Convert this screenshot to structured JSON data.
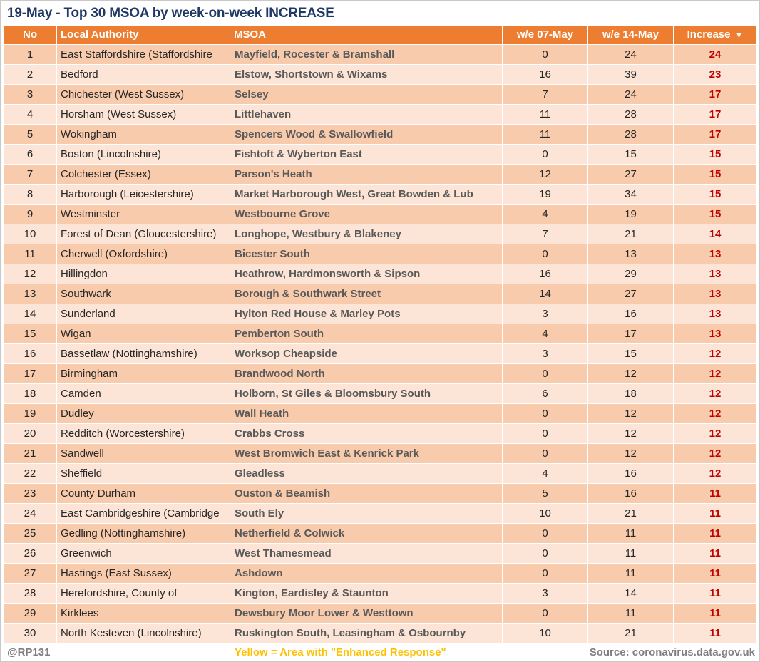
{
  "chart_data": {
    "type": "table",
    "title": "19-May - Top 30 MSOA by week-on-week INCREASE",
    "columns": [
      "No",
      "Local Authority",
      "MSOA",
      "w/e 07-May",
      "w/e 14-May",
      "Increase"
    ],
    "sort": {
      "column": "Increase",
      "direction": "desc",
      "icon": "▼"
    },
    "rows": [
      [
        1,
        "East Staffordshire (Staffordshire",
        "Mayfield, Rocester & Bramshall",
        0,
        24,
        24
      ],
      [
        2,
        "Bedford",
        "Elstow, Shortstown & Wixams",
        16,
        39,
        23
      ],
      [
        3,
        "Chichester (West Sussex)",
        "Selsey",
        7,
        24,
        17
      ],
      [
        4,
        "Horsham (West Sussex)",
        "Littlehaven",
        11,
        28,
        17
      ],
      [
        5,
        "Wokingham",
        "Spencers Wood & Swallowfield",
        11,
        28,
        17
      ],
      [
        6,
        "Boston (Lincolnshire)",
        "Fishtoft & Wyberton East",
        0,
        15,
        15
      ],
      [
        7,
        "Colchester (Essex)",
        "Parson's Heath",
        12,
        27,
        15
      ],
      [
        8,
        "Harborough (Leicestershire)",
        "Market Harborough West, Great Bowden & Lub",
        19,
        34,
        15
      ],
      [
        9,
        "Westminster",
        "Westbourne Grove",
        4,
        19,
        15
      ],
      [
        10,
        "Forest of Dean (Gloucestershire)",
        "Longhope, Westbury & Blakeney",
        7,
        21,
        14
      ],
      [
        11,
        "Cherwell (Oxfordshire)",
        "Bicester South",
        0,
        13,
        13
      ],
      [
        12,
        "Hillingdon",
        "Heathrow, Hardmonsworth & Sipson",
        16,
        29,
        13
      ],
      [
        13,
        "Southwark",
        "Borough & Southwark Street",
        14,
        27,
        13
      ],
      [
        14,
        "Sunderland",
        "Hylton Red House & Marley Pots",
        3,
        16,
        13
      ],
      [
        15,
        "Wigan",
        "Pemberton South",
        4,
        17,
        13
      ],
      [
        16,
        "Bassetlaw (Nottinghamshire)",
        "Worksop Cheapside",
        3,
        15,
        12
      ],
      [
        17,
        "Birmingham",
        "Brandwood North",
        0,
        12,
        12
      ],
      [
        18,
        "Camden",
        "Holborn, St Giles & Bloomsbury South",
        6,
        18,
        12
      ],
      [
        19,
        "Dudley",
        "Wall Heath",
        0,
        12,
        12
      ],
      [
        20,
        "Redditch (Worcestershire)",
        "Crabbs Cross",
        0,
        12,
        12
      ],
      [
        21,
        "Sandwell",
        "West Bromwich East & Kenrick Park",
        0,
        12,
        12
      ],
      [
        22,
        "Sheffield",
        "Gleadless",
        4,
        16,
        12
      ],
      [
        23,
        "County Durham",
        "Ouston & Beamish",
        5,
        16,
        11
      ],
      [
        24,
        "East Cambridgeshire (Cambridge",
        "South Ely",
        10,
        21,
        11
      ],
      [
        25,
        "Gedling (Nottinghamshire)",
        "Netherfield & Colwick",
        0,
        11,
        11
      ],
      [
        26,
        "Greenwich",
        "West Thamesmead",
        0,
        11,
        11
      ],
      [
        27,
        "Hastings (East Sussex)",
        "Ashdown",
        0,
        11,
        11
      ],
      [
        28,
        "Herefordshire, County of",
        "Kington, Eardisley & Staunton",
        3,
        14,
        11
      ],
      [
        29,
        "Kirklees",
        "Dewsbury Moor Lower & Westtown",
        0,
        11,
        11
      ],
      [
        30,
        "North Kesteven (Lincolnshire)",
        "Ruskington South, Leasingham & Osbournby",
        10,
        21,
        11
      ]
    ]
  },
  "footer": {
    "handle": "@RP131",
    "note": "Yellow = Area with \"Enhanced Response\"",
    "source": "Source: coronavirus.data.gov.uk"
  },
  "colors": {
    "header_bg": "#ED7D31",
    "row_odd": "#F8CBAD",
    "row_even": "#FCE4D6",
    "increase_text": "#C00000",
    "title_text": "#1F3864",
    "msoa_text": "#595959",
    "note_yellow": "#FFC000",
    "footer_gray": "#7F7F7F"
  }
}
